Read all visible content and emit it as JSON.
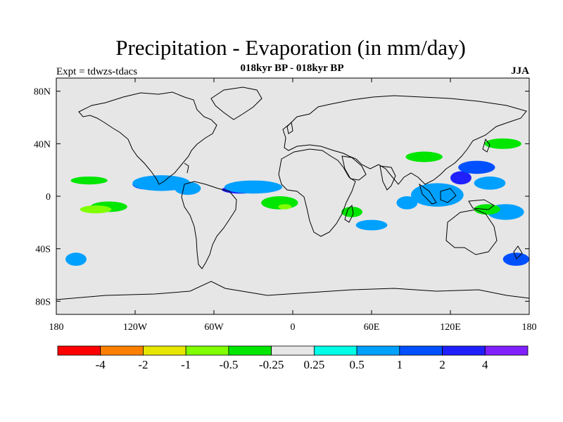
{
  "header": {
    "title": "Precipitation - Evaporation (in mm/day)",
    "subtitle": "018kyr BP - 018kyr BP",
    "experiment": "Expt = tdwzs-tdacs",
    "season": "JJA"
  },
  "map": {
    "projection": "cylindrical equidistant",
    "lon_range": [
      -180,
      180
    ],
    "lat_range": [
      -90,
      90
    ],
    "background_color": "#e6e6e6",
    "coastline_color": "#000000",
    "x_ticks": [
      {
        "lon": -180,
        "label": "180"
      },
      {
        "lon": -120,
        "label": "120W"
      },
      {
        "lon": -60,
        "label": "60W"
      },
      {
        "lon": 0,
        "label": "0"
      },
      {
        "lon": 60,
        "label": "60E"
      },
      {
        "lon": 120,
        "label": "120E"
      },
      {
        "lon": 180,
        "label": "180"
      }
    ],
    "y_ticks": [
      {
        "lat": 80,
        "label": "80N"
      },
      {
        "lat": 40,
        "label": "40N"
      },
      {
        "lat": 0,
        "label": "0"
      },
      {
        "lat": -40,
        "label": "40S"
      },
      {
        "lat": -80,
        "label": "80S"
      }
    ]
  },
  "colorbar": {
    "colors": [
      "#ff0000",
      "#ff8000",
      "#e6e600",
      "#80ff00",
      "#00e600",
      "#e6e6e6",
      "#00ffe6",
      "#00a0ff",
      "#0050ff",
      "#2020ff",
      "#8020ff"
    ],
    "labels": [
      "-4",
      "-2",
      "-1",
      "-0.5",
      "-0.25",
      "0.25",
      "0.5",
      "1",
      "2",
      "4"
    ]
  },
  "chart_data": {
    "type": "heatmap",
    "title": "Precipitation - Evaporation (in mm/day)",
    "units": "mm/day",
    "levels": [
      -4,
      -2,
      -1,
      -0.5,
      -0.25,
      0.25,
      0.5,
      1,
      2,
      4
    ],
    "regions": [
      {
        "lon": -40,
        "lat": 5,
        "rx": 14,
        "ry": 3,
        "value": 2
      },
      {
        "lon": -30,
        "lat": 7,
        "rx": 22,
        "ry": 5,
        "value": 0.5
      },
      {
        "lon": -110,
        "lat": 9,
        "rx": 12,
        "ry": 4,
        "value": 1
      },
      {
        "lon": -100,
        "lat": 10,
        "rx": 22,
        "ry": 6,
        "value": 0.5
      },
      {
        "lon": -80,
        "lat": 6,
        "rx": 10,
        "ry": 5,
        "value": 0.5
      },
      {
        "lon": 100,
        "lat": 0,
        "rx": 8,
        "ry": 5,
        "value": 2
      },
      {
        "lon": 110,
        "lat": 1,
        "rx": 20,
        "ry": 9,
        "value": 0.5
      },
      {
        "lon": 128,
        "lat": 14,
        "rx": 8,
        "ry": 5,
        "value": 2
      },
      {
        "lon": 140,
        "lat": 22,
        "rx": 14,
        "ry": 5,
        "value": 1
      },
      {
        "lon": 150,
        "lat": 10,
        "rx": 12,
        "ry": 5,
        "value": 0.5
      },
      {
        "lon": 162,
        "lat": -12,
        "rx": 14,
        "ry": 6,
        "value": 0.5
      },
      {
        "lon": 170,
        "lat": -48,
        "rx": 10,
        "ry": 5,
        "value": 1
      },
      {
        "lon": -165,
        "lat": -48,
        "rx": 8,
        "ry": 5,
        "value": 0.5
      },
      {
        "lon": 60,
        "lat": -22,
        "rx": 12,
        "ry": 4,
        "value": 0.5
      },
      {
        "lon": 87,
        "lat": -5,
        "rx": 8,
        "ry": 5,
        "value": 0.5
      },
      {
        "lon": -140,
        "lat": -8,
        "rx": 14,
        "ry": 4,
        "value": -0.5
      },
      {
        "lon": -150,
        "lat": -10,
        "rx": 12,
        "ry": 3,
        "value": -1
      },
      {
        "lon": -100,
        "lat": -8,
        "rx": 14,
        "ry": 4,
        "value": -0.25
      },
      {
        "lon": -10,
        "lat": -5,
        "rx": 14,
        "ry": 5,
        "value": -0.5
      },
      {
        "lon": -6,
        "lat": -8,
        "rx": 5,
        "ry": 2,
        "value": -1
      },
      {
        "lon": 38,
        "lat": -5,
        "rx": 14,
        "ry": 5,
        "value": -0.25
      },
      {
        "lon": 45,
        "lat": -12,
        "rx": 8,
        "ry": 4,
        "value": -0.5
      },
      {
        "lon": 148,
        "lat": -10,
        "rx": 10,
        "ry": 4,
        "value": -0.5
      },
      {
        "lon": -155,
        "lat": 12,
        "rx": 14,
        "ry": 3,
        "value": -0.5
      },
      {
        "lon": -50,
        "lat": -35,
        "rx": 18,
        "ry": 5,
        "value": -0.25
      },
      {
        "lon": 100,
        "lat": 30,
        "rx": 14,
        "ry": 4,
        "value": -0.5
      },
      {
        "lon": -90,
        "lat": 38,
        "rx": 10,
        "ry": 4,
        "value": -0.25
      },
      {
        "lon": 30,
        "lat": 60,
        "rx": 12,
        "ry": 3,
        "value": -0.25
      },
      {
        "lon": 160,
        "lat": 40,
        "rx": 14,
        "ry": 4,
        "value": -0.5
      }
    ]
  }
}
